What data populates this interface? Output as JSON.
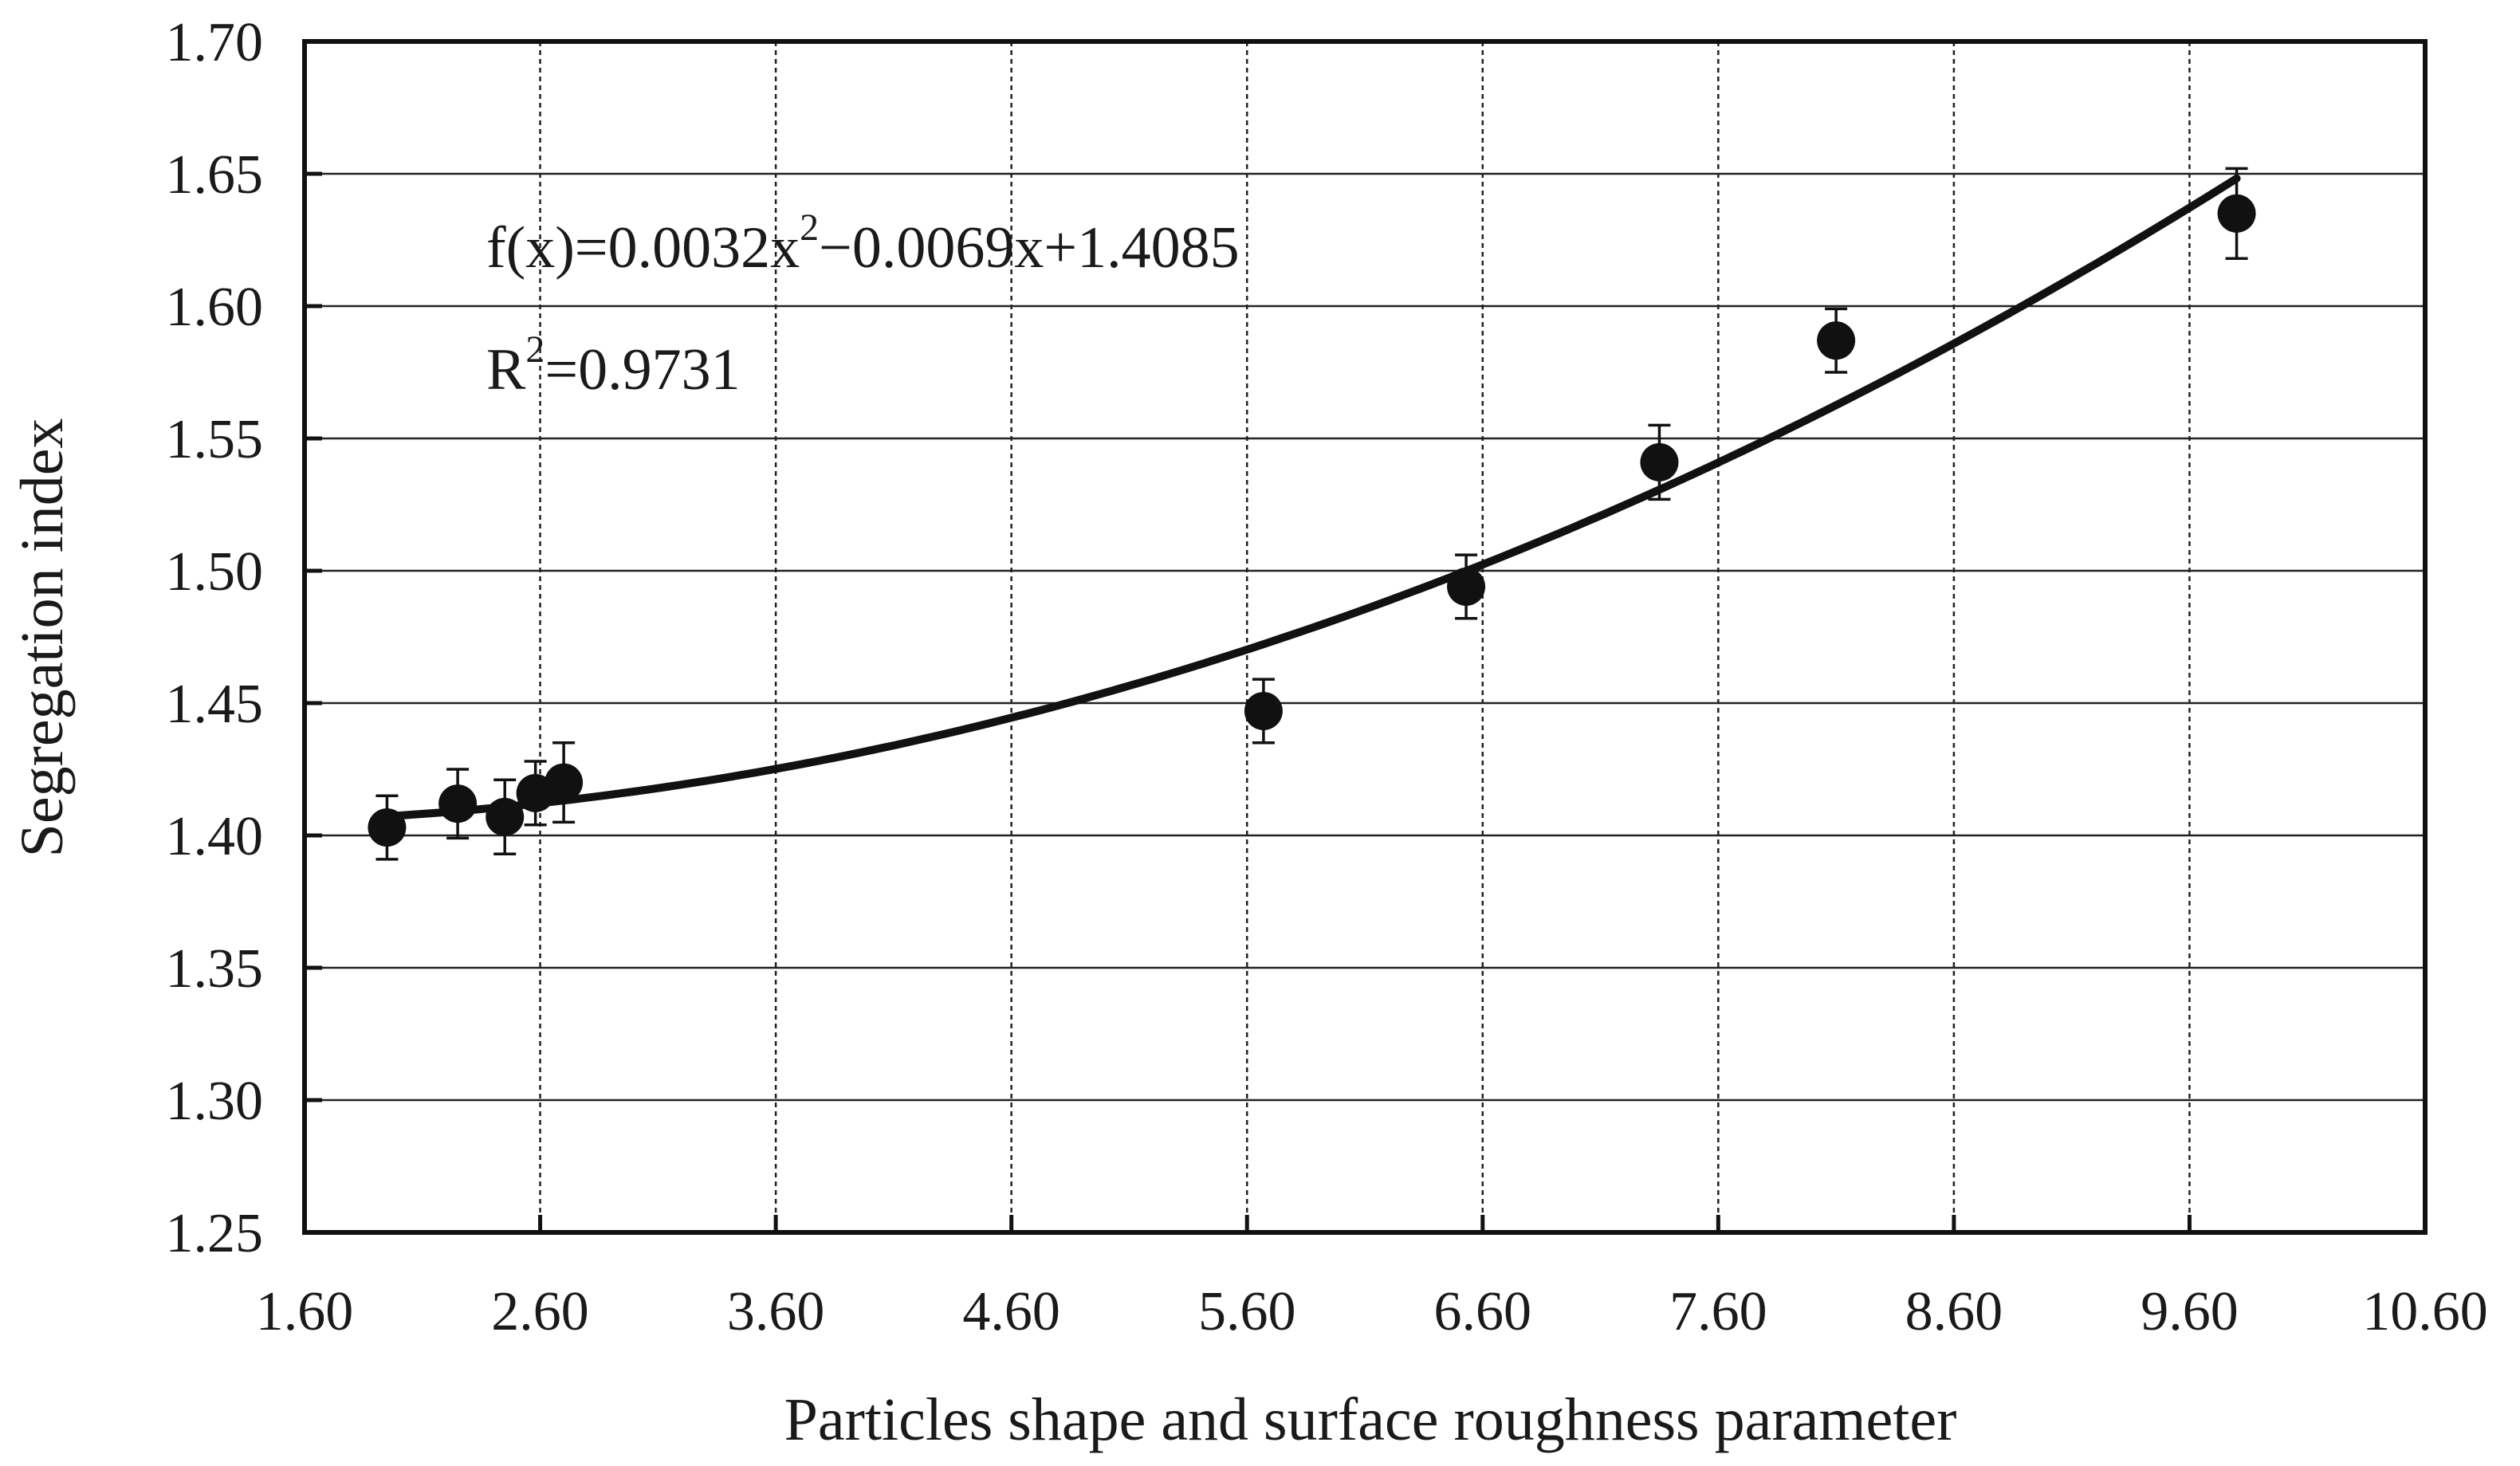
{
  "chart_data": {
    "type": "scatter",
    "xlabel": "Particles shape and surface roughness parameter",
    "ylabel": "Segregation index",
    "xlim": [
      1.6,
      10.6
    ],
    "ylim": [
      1.25,
      1.7
    ],
    "x_ticks": [
      "1.60",
      "2.60",
      "3.60",
      "4.60",
      "5.60",
      "6.60",
      "7.60",
      "8.60",
      "9.60",
      "10.60"
    ],
    "y_ticks": [
      "1.25",
      "1.30",
      "1.35",
      "1.40",
      "1.45",
      "1.50",
      "1.55",
      "1.60",
      "1.65",
      "1.70"
    ],
    "grid": true,
    "points": [
      {
        "x": 1.95,
        "y": 1.403,
        "err": 0.012
      },
      {
        "x": 2.25,
        "y": 1.412,
        "err": 0.013
      },
      {
        "x": 2.45,
        "y": 1.407,
        "err": 0.014
      },
      {
        "x": 2.58,
        "y": 1.416,
        "err": 0.012
      },
      {
        "x": 2.7,
        "y": 1.42,
        "err": 0.015
      },
      {
        "x": 5.67,
        "y": 1.447,
        "err": 0.012
      },
      {
        "x": 6.53,
        "y": 1.494,
        "err": 0.012
      },
      {
        "x": 7.35,
        "y": 1.541,
        "err": 0.014
      },
      {
        "x": 8.1,
        "y": 1.587,
        "err": 0.012
      },
      {
        "x": 9.8,
        "y": 1.635,
        "err": 0.017
      }
    ],
    "fit": {
      "coefficients": [
        0.0032,
        -0.0069,
        1.4085
      ],
      "x_range": [
        1.95,
        9.8
      ]
    },
    "annotation": {
      "equation_prefix": "f(x)=0.0032x",
      "equation_exp": "2",
      "equation_rest": "−0.0069x+1.4085",
      "r2_prefix": "R",
      "r2_exp": "2",
      "r2_value": "=0.9731"
    },
    "colors": {
      "marker": "#111111",
      "line": "#111111",
      "grid": "#222222",
      "frame": "#111111"
    }
  }
}
